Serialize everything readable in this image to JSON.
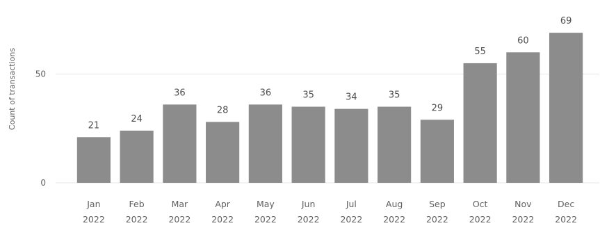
{
  "chart_data": {
    "type": "bar",
    "title": "",
    "ylabel": "Count of transactions",
    "xlabel": "",
    "categories": [
      [
        "Jan",
        "2022"
      ],
      [
        "Feb",
        "2022"
      ],
      [
        "Mar",
        "2022"
      ],
      [
        "Apr",
        "2022"
      ],
      [
        "May",
        "2022"
      ],
      [
        "Jun",
        "2022"
      ],
      [
        "Jul",
        "2022"
      ],
      [
        "Aug",
        "2022"
      ],
      [
        "Sep",
        "2022"
      ],
      [
        "Oct",
        "2022"
      ],
      [
        "Nov",
        "2022"
      ],
      [
        "Dec",
        "2022"
      ]
    ],
    "values": [
      21,
      24,
      36,
      28,
      36,
      35,
      34,
      35,
      29,
      55,
      60,
      69
    ],
    "yticks": [
      0,
      50
    ],
    "ylim": [
      0,
      70
    ],
    "grid": true,
    "bar_color": "#8c8c8c",
    "grid_color": "#e6e6e6",
    "data_labels": true
  }
}
